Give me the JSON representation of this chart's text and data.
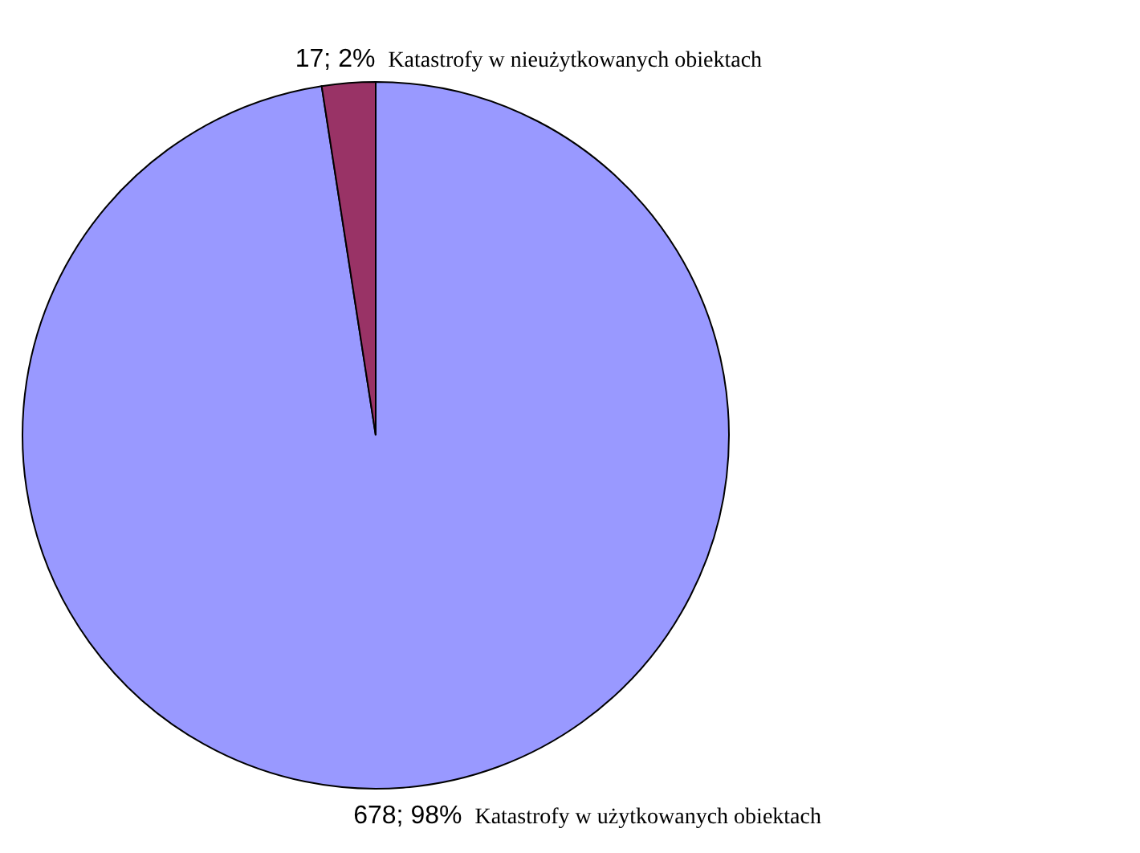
{
  "chart_data": {
    "type": "pie",
    "categories": [
      "Katastrofy w użytkowanych obiektach",
      "Katastrofy w nieużytkowanych obiektach"
    ],
    "values": [
      678,
      17
    ],
    "colors": [
      "#9999ff",
      "#993366"
    ],
    "value_labels": [
      "678; 98%",
      "17; 2%"
    ]
  }
}
